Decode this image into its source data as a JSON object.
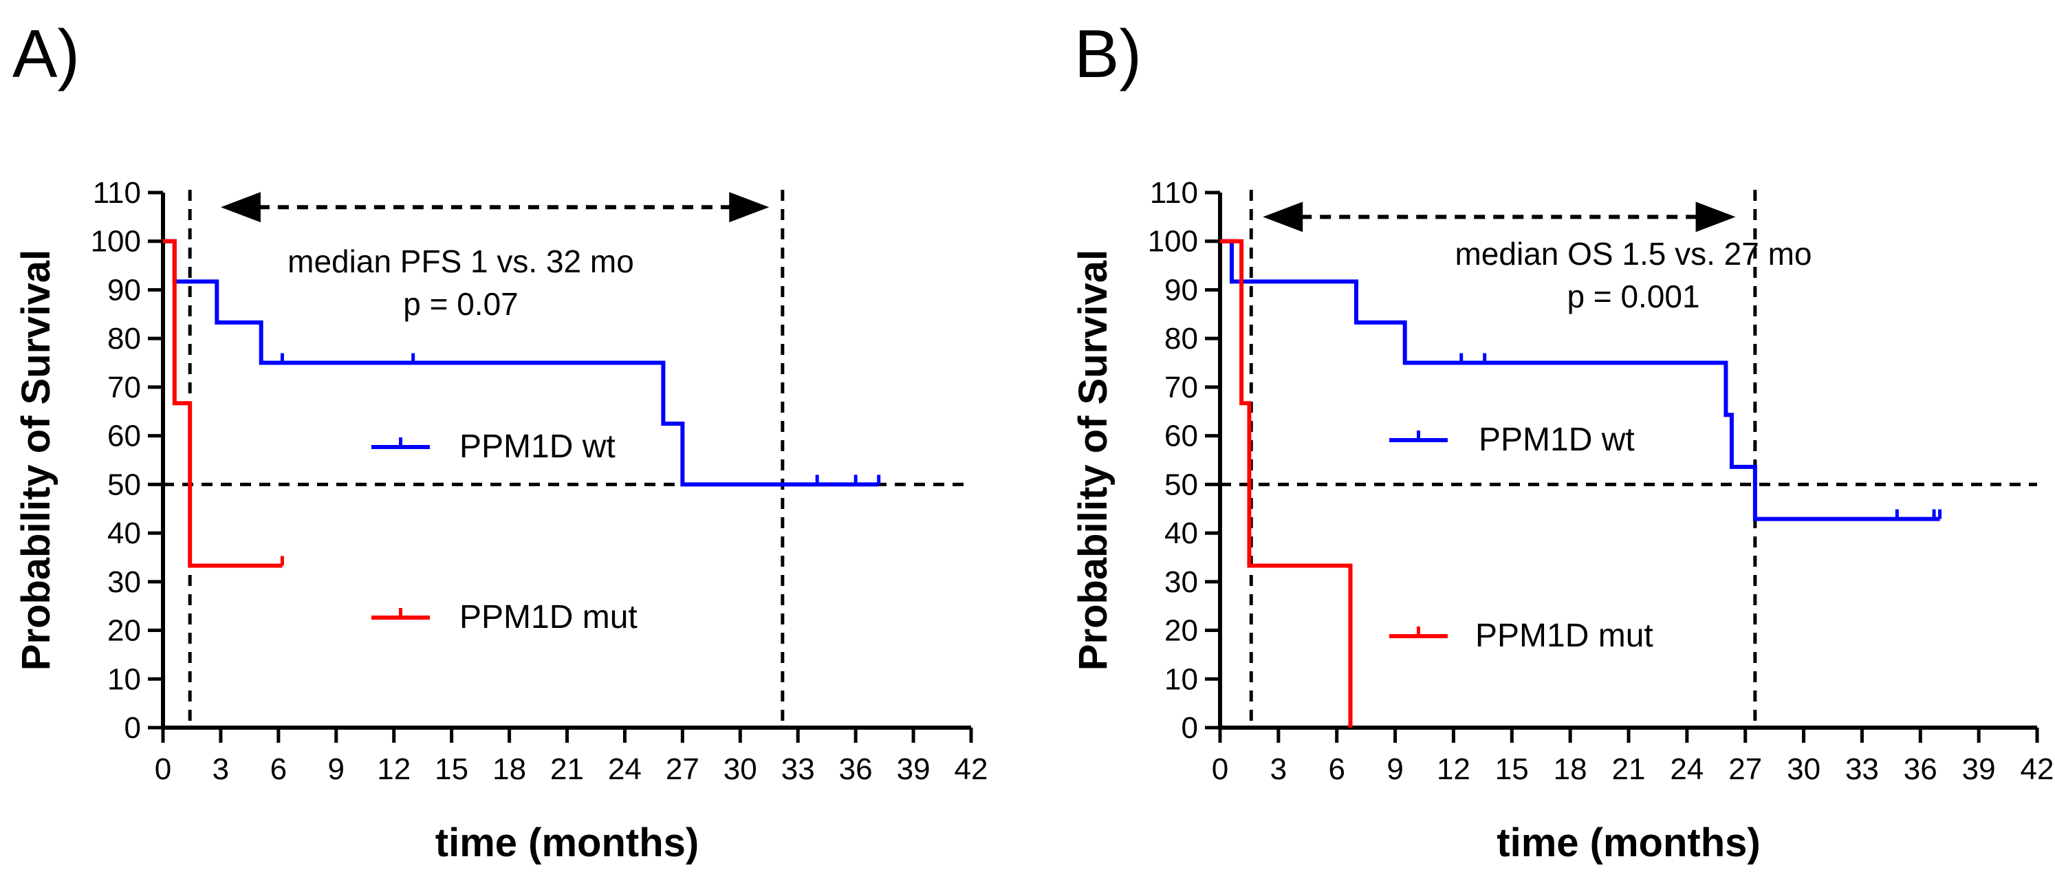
{
  "chart_data": [
    {
      "panel_label": "A)",
      "type": "line",
      "subtype": "kaplan-meier",
      "xlabel": "time (months)",
      "ylabel": "Probability of Survival",
      "xlim": [
        0,
        42
      ],
      "ylim": [
        0,
        110
      ],
      "xticks": [
        0,
        3,
        6,
        9,
        12,
        15,
        18,
        21,
        24,
        27,
        30,
        33,
        36,
        39,
        42
      ],
      "yticks": [
        0,
        10,
        20,
        30,
        40,
        50,
        60,
        70,
        80,
        90,
        100,
        110
      ],
      "annotation": [
        "median PFS 1 vs. 32 mo",
        "p = 0.07"
      ],
      "median_markers": [
        1.4,
        32.2
      ],
      "reference_line_y": 50,
      "arrow": {
        "from_x": 3,
        "to_x": 31.5,
        "y": 107
      },
      "series": [
        {
          "name": "PPM1D wt",
          "color": "#0000ff",
          "steps": [
            [
              0,
              100
            ],
            [
              0.6,
              91.7
            ],
            [
              2.8,
              83.3
            ],
            [
              5.1,
              75
            ],
            [
              26,
              62.5
            ],
            [
              27,
              50
            ],
            [
              37.2,
              50
            ]
          ],
          "censors": [
            [
              6.2,
              75
            ],
            [
              13,
              75
            ],
            [
              34,
              50
            ],
            [
              36,
              50
            ],
            [
              37.2,
              50
            ]
          ]
        },
        {
          "name": "PPM1D mut",
          "color": "#ff0000",
          "steps": [
            [
              0,
              100
            ],
            [
              0.6,
              66.7
            ],
            [
              1.4,
              33.3
            ],
            [
              6.2,
              33.3
            ]
          ],
          "censors": [
            [
              6.2,
              33.3
            ]
          ]
        }
      ]
    },
    {
      "panel_label": "B)",
      "type": "line",
      "subtype": "kaplan-meier",
      "xlabel": "time (months)",
      "ylabel": "Probability of Survival",
      "xlim": [
        0,
        42
      ],
      "ylim": [
        0,
        110
      ],
      "xticks": [
        0,
        3,
        6,
        9,
        12,
        15,
        18,
        21,
        24,
        27,
        30,
        33,
        36,
        39,
        42
      ],
      "yticks": [
        0,
        10,
        20,
        30,
        40,
        50,
        60,
        70,
        80,
        90,
        100,
        110
      ],
      "annotation": [
        "median OS 1.5 vs. 27 mo",
        "p = 0.001"
      ],
      "median_markers": [
        1.6,
        27.5
      ],
      "reference_line_y": 50,
      "arrow": {
        "from_x": 2.2,
        "to_x": 26.5,
        "y": 105
      },
      "series": [
        {
          "name": "PPM1D wt",
          "color": "#0000ff",
          "steps": [
            [
              0,
              100
            ],
            [
              0.6,
              91.7
            ],
            [
              7,
              83.3
            ],
            [
              9.5,
              75
            ],
            [
              26,
              64.3
            ],
            [
              26.3,
              53.6
            ],
            [
              27.5,
              42.9
            ],
            [
              37,
              42.9
            ]
          ],
          "censors": [
            [
              12.4,
              75
            ],
            [
              13.6,
              75
            ],
            [
              34.8,
              42.9
            ],
            [
              36.7,
              42.9
            ],
            [
              37,
              42.9
            ]
          ]
        },
        {
          "name": "PPM1D mut",
          "color": "#ff0000",
          "steps": [
            [
              0,
              100
            ],
            [
              1.1,
              66.7
            ],
            [
              1.5,
              33.3
            ],
            [
              6.7,
              0
            ]
          ],
          "censors": []
        }
      ]
    }
  ]
}
